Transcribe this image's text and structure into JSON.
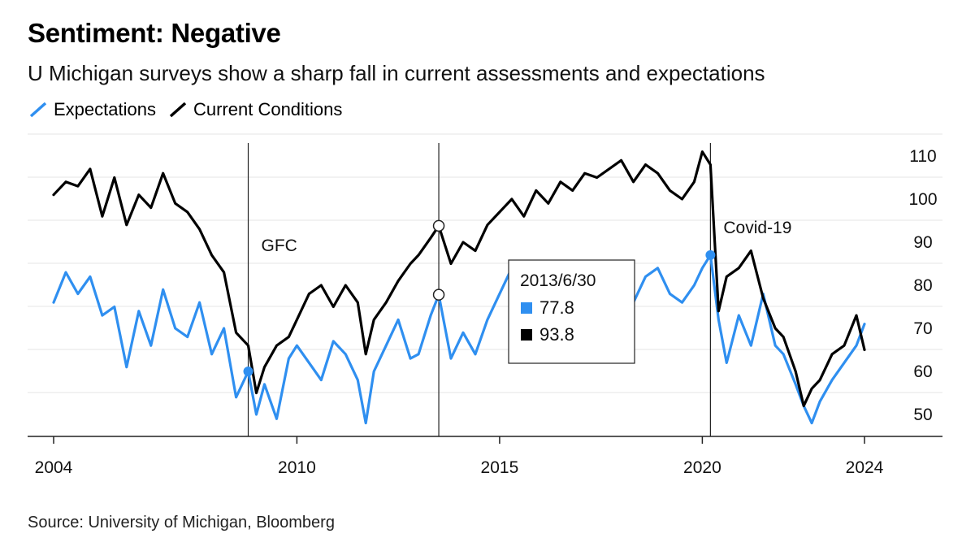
{
  "header": {
    "title": "Sentiment: Negative",
    "subtitle": "U Michigan surveys show a sharp fall in current assessments and expectations"
  },
  "legend": [
    {
      "label": "Expectations",
      "color": "#2f8ff0"
    },
    {
      "label": "Current Conditions",
      "color": "#000000"
    }
  ],
  "source": "Source: University of Michigan, Bloomberg",
  "chart_data": {
    "type": "line",
    "xlabel": "",
    "ylabel": "",
    "xlim": [
      2004,
      2026
    ],
    "ylim": [
      45,
      115
    ],
    "y_axis_side": "right",
    "x_ticks": [
      2004,
      2010,
      2015,
      2020,
      2024
    ],
    "x_tick_labels": [
      "2004",
      "2010",
      "2015",
      "2020",
      "2024"
    ],
    "y_ticks": [
      50,
      60,
      70,
      80,
      90,
      100,
      110
    ],
    "y_tick_labels": [
      "50",
      "60",
      "70",
      "80",
      "90",
      "100",
      "110"
    ],
    "grid": "horizontal",
    "annotations": [
      {
        "x": 2008.8,
        "label": "GFC"
      },
      {
        "x": 2013.5,
        "label": ""
      },
      {
        "x": 2020.2,
        "label": "Covid-19"
      }
    ],
    "tooltip": {
      "x": 2013.5,
      "date": "2013/6/30",
      "rows": [
        {
          "series": "Expectations",
          "value": "77.8",
          "color": "#2f8ff0"
        },
        {
          "series": "Current Conditions",
          "value": "93.8",
          "color": "#000000"
        }
      ]
    },
    "series": [
      {
        "name": "Expectations",
        "color": "#2f8ff0",
        "x": [
          2004.0,
          2004.3,
          2004.6,
          2004.9,
          2005.2,
          2005.5,
          2005.8,
          2006.1,
          2006.4,
          2006.7,
          2007.0,
          2007.3,
          2007.6,
          2007.9,
          2008.2,
          2008.5,
          2008.8,
          2009.0,
          2009.2,
          2009.5,
          2009.8,
          2010.0,
          2010.3,
          2010.6,
          2010.9,
          2011.2,
          2011.5,
          2011.7,
          2011.9,
          2012.2,
          2012.5,
          2012.8,
          2013.0,
          2013.3,
          2013.5,
          2013.8,
          2014.1,
          2014.4,
          2014.7,
          2015.0,
          2015.3,
          2015.6,
          2015.9,
          2016.2,
          2016.5,
          2016.8,
          2017.1,
          2017.4,
          2017.7,
          2018.0,
          2018.3,
          2018.6,
          2018.9,
          2019.2,
          2019.5,
          2019.8,
          2020.0,
          2020.2,
          2020.4,
          2020.6,
          2020.9,
          2021.2,
          2021.5,
          2021.8,
          2022.0,
          2022.3,
          2022.5,
          2022.7,
          2022.9,
          2023.2,
          2023.5,
          2023.8,
          2024.0
        ],
        "values": [
          76,
          83,
          78,
          82,
          73,
          75,
          61,
          74,
          66,
          79,
          70,
          68,
          76,
          64,
          70,
          54,
          60,
          50,
          57,
          49,
          63,
          66,
          62,
          58,
          67,
          64,
          58,
          48,
          60,
          66,
          72,
          63,
          64,
          73,
          77.8,
          63,
          69,
          64,
          72,
          78,
          84,
          80,
          78,
          81,
          76,
          84,
          79,
          83,
          80,
          85,
          76,
          82,
          84,
          78,
          76,
          80,
          84,
          87,
          72,
          62,
          73,
          66,
          78,
          66,
          64,
          57,
          52,
          48,
          53,
          58,
          62,
          66,
          71
        ]
      },
      {
        "name": "Current Conditions",
        "color": "#000000",
        "x": [
          2004.0,
          2004.3,
          2004.6,
          2004.9,
          2005.2,
          2005.5,
          2005.8,
          2006.1,
          2006.4,
          2006.7,
          2007.0,
          2007.3,
          2007.6,
          2007.9,
          2008.2,
          2008.5,
          2008.8,
          2009.0,
          2009.2,
          2009.5,
          2009.8,
          2010.0,
          2010.3,
          2010.6,
          2010.9,
          2011.2,
          2011.5,
          2011.7,
          2011.9,
          2012.2,
          2012.5,
          2012.8,
          2013.0,
          2013.3,
          2013.5,
          2013.8,
          2014.1,
          2014.4,
          2014.7,
          2015.0,
          2015.3,
          2015.6,
          2015.9,
          2016.2,
          2016.5,
          2016.8,
          2017.1,
          2017.4,
          2017.7,
          2018.0,
          2018.3,
          2018.6,
          2018.9,
          2019.2,
          2019.5,
          2019.8,
          2020.0,
          2020.2,
          2020.4,
          2020.6,
          2020.9,
          2021.2,
          2021.5,
          2021.8,
          2022.0,
          2022.3,
          2022.5,
          2022.7,
          2022.9,
          2023.2,
          2023.5,
          2023.8,
          2024.0
        ],
        "values": [
          101,
          104,
          103,
          107,
          96,
          105,
          94,
          101,
          98,
          106,
          99,
          97,
          93,
          87,
          83,
          69,
          66,
          55,
          61,
          66,
          68,
          72,
          78,
          80,
          75,
          80,
          76,
          64,
          72,
          76,
          81,
          85,
          87,
          91,
          93.8,
          85,
          90,
          88,
          94,
          97,
          100,
          96,
          102,
          99,
          104,
          102,
          106,
          105,
          107,
          109,
          104,
          108,
          106,
          102,
          100,
          104,
          111,
          108,
          74,
          82,
          84,
          88,
          77,
          70,
          68,
          60,
          52,
          56,
          58,
          64,
          66,
          73,
          65
        ]
      }
    ]
  }
}
